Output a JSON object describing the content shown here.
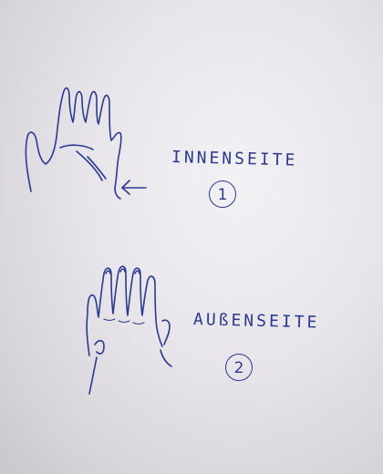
{
  "drawings": [
    {
      "icon": "palm-hand-sketch",
      "label": "INNENSEITE",
      "number": "1"
    },
    {
      "icon": "back-hand-sketch",
      "label": "AUßENSEITE",
      "number": "2"
    }
  ],
  "ink_color": "#2b3a8f",
  "paper_color": "#e7e5ea"
}
